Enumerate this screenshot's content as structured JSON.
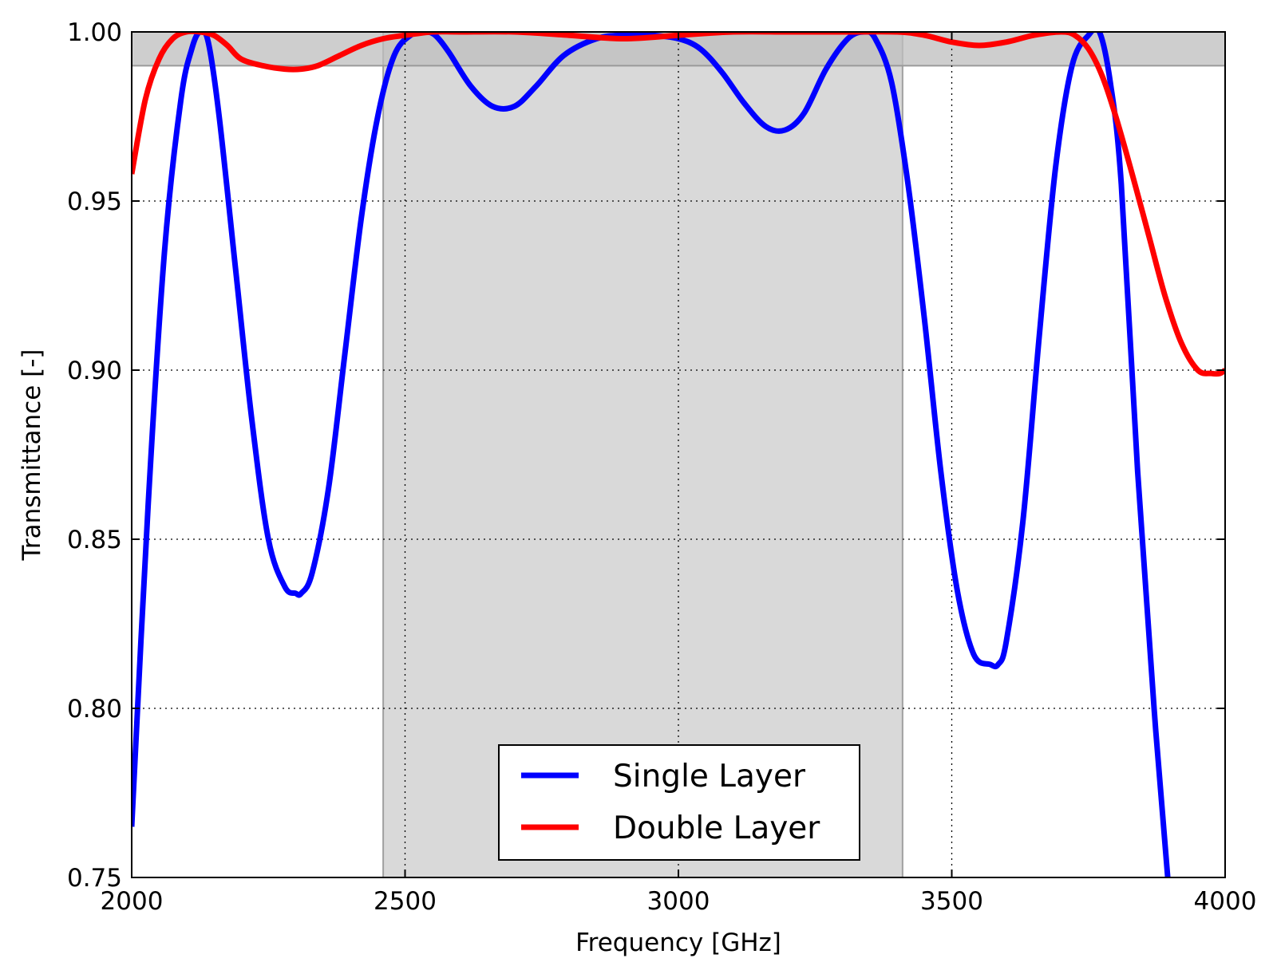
{
  "chart_data": {
    "type": "line",
    "xlabel": "Frequency [GHz]",
    "ylabel": "Transmittance [-]",
    "xlim": [
      2000,
      4000
    ],
    "ylim": [
      0.75,
      1.0
    ],
    "xticks": [
      "2000",
      "2500",
      "3000",
      "3500",
      "4000"
    ],
    "yticks": [
      "0.75",
      "0.80",
      "0.85",
      "0.90",
      "0.95",
      "1.00"
    ],
    "grid": true,
    "legend_position": "lower-center",
    "shaded_regions": [
      {
        "axis": "x",
        "range": [
          2460,
          3410
        ],
        "color": "#d9d9d9"
      },
      {
        "axis": "y",
        "range": [
          0.99,
          1.0
        ],
        "color": "#bdbdbd"
      }
    ],
    "series": [
      {
        "name": "Single Layer",
        "color": "#0000ff",
        "x": [
          2000,
          2030,
          2060,
          2090,
          2110,
          2125,
          2140,
          2160,
          2190,
          2220,
          2250,
          2280,
          2300,
          2310,
          2330,
          2360,
          2390,
          2420,
          2450,
          2480,
          2510,
          2535,
          2555,
          2580,
          2620,
          2660,
          2700,
          2740,
          2790,
          2850,
          2900,
          2950,
          3000,
          3040,
          3080,
          3120,
          3160,
          3195,
          3230,
          3270,
          3310,
          3340,
          3360,
          3390,
          3420,
          3450,
          3480,
          3510,
          3540,
          3570,
          3585,
          3600,
          3630,
          3660,
          3690,
          3720,
          3750,
          3770,
          3790,
          3810,
          3840,
          3870,
          3895
        ],
        "y": [
          0.765,
          0.86,
          0.935,
          0.98,
          0.995,
          1.0,
          0.997,
          0.975,
          0.93,
          0.885,
          0.85,
          0.836,
          0.834,
          0.834,
          0.84,
          0.865,
          0.905,
          0.945,
          0.975,
          0.993,
          0.999,
          1.0,
          0.999,
          0.994,
          0.984,
          0.978,
          0.978,
          0.984,
          0.993,
          0.998,
          0.999,
          0.999,
          0.998,
          0.995,
          0.988,
          0.979,
          0.972,
          0.971,
          0.976,
          0.989,
          0.998,
          1.0,
          0.998,
          0.985,
          0.955,
          0.915,
          0.87,
          0.835,
          0.816,
          0.813,
          0.813,
          0.82,
          0.855,
          0.91,
          0.96,
          0.99,
          0.999,
          1.0,
          0.985,
          0.955,
          0.87,
          0.8,
          0.75
        ]
      },
      {
        "name": "Double Layer",
        "color": "#ff0000",
        "x": [
          2000,
          2025,
          2050,
          2075,
          2100,
          2125,
          2150,
          2175,
          2200,
          2240,
          2280,
          2310,
          2340,
          2380,
          2420,
          2460,
          2500,
          2550,
          2600,
          2700,
          2800,
          2900,
          3000,
          3100,
          3200,
          3300,
          3400,
          3450,
          3500,
          3550,
          3600,
          3650,
          3700,
          3725,
          3750,
          3775,
          3800,
          3830,
          3860,
          3890,
          3920,
          3950,
          3975,
          3990,
          4000
        ],
        "y": [
          0.958,
          0.98,
          0.992,
          0.998,
          1.0,
          1.0,
          0.999,
          0.996,
          0.992,
          0.99,
          0.989,
          0.989,
          0.99,
          0.993,
          0.996,
          0.998,
          0.999,
          1.0,
          1.0,
          1.0,
          0.999,
          0.998,
          0.999,
          1.0,
          1.0,
          1.0,
          1.0,
          0.999,
          0.997,
          0.996,
          0.997,
          0.999,
          1.0,
          0.999,
          0.995,
          0.987,
          0.975,
          0.958,
          0.94,
          0.922,
          0.908,
          0.9,
          0.899,
          0.899,
          0.9
        ]
      }
    ]
  }
}
